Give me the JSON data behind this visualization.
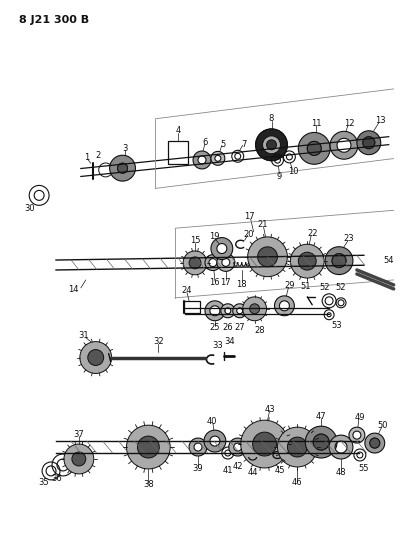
{
  "title": "8 J21 300 B",
  "bg_color": "#ffffff",
  "fig_width": 4.01,
  "fig_height": 5.33,
  "dpi": 100
}
